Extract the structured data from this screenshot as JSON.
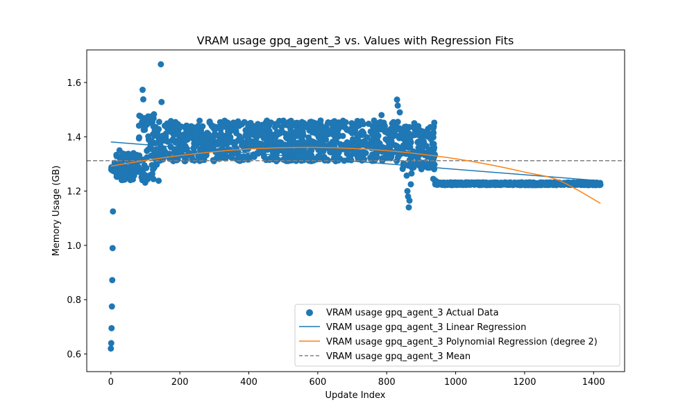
{
  "chart_data": {
    "type": "scatter",
    "title": "VRAM usage gpq_agent_3 vs. Values with Regression Fits",
    "xlabel": "Update Index",
    "ylabel": "Memory Usage (GB)",
    "xlim": [
      -70,
      1490
    ],
    "ylim": [
      0.535,
      1.72
    ],
    "xticks": [
      0,
      200,
      400,
      600,
      800,
      1000,
      1200,
      1400
    ],
    "xtick_labels": [
      "0",
      "200",
      "400",
      "600",
      "800",
      "1000",
      "1200",
      "1400"
    ],
    "yticks": [
      0.6,
      0.8,
      1.0,
      1.2,
      1.4,
      1.6
    ],
    "ytick_labels": [
      "0.6",
      "0.8",
      "1.0",
      "1.2",
      "1.4",
      "1.6"
    ],
    "grid": false,
    "legend_position": "lower-right",
    "colors": {
      "actual": "#1f77b4",
      "linear": "#1f77b4",
      "poly": "#ff7f0e",
      "mean": "#808080"
    },
    "series": [
      {
        "name": "VRAM usage gpq_agent_3 Actual Data",
        "kind": "scatter",
        "segments": [
          {
            "x_range": [
              0,
              10
            ],
            "y_range": [
              1.27,
              1.29
            ]
          },
          {
            "x_range": [
              10,
              80
            ],
            "y_range": [
              1.24,
              1.34
            ]
          },
          {
            "x_range": [
              80,
              140
            ],
            "y_range": [
              1.23,
              1.48
            ]
          },
          {
            "x_range": [
              140,
              840
            ],
            "y_range": [
              1.31,
              1.46
            ]
          },
          {
            "x_range": [
              840,
              940
            ],
            "y_range": [
              1.28,
              1.44
            ]
          },
          {
            "x_range": [
              940,
              1420
            ],
            "y_range": [
              1.222,
              1.232
            ]
          }
        ],
        "points": [
          {
            "x": 0,
            "y": 0.62
          },
          {
            "x": 1,
            "y": 0.64
          },
          {
            "x": 2,
            "y": 0.695
          },
          {
            "x": 3,
            "y": 0.775
          },
          {
            "x": 4,
            "y": 0.872
          },
          {
            "x": 5,
            "y": 0.99
          },
          {
            "x": 6,
            "y": 1.125
          },
          {
            "x": 25,
            "y": 1.35
          },
          {
            "x": 60,
            "y": 1.33
          },
          {
            "x": 92,
            "y": 1.573
          },
          {
            "x": 94,
            "y": 1.538
          },
          {
            "x": 145,
            "y": 1.667
          },
          {
            "x": 147,
            "y": 1.528
          },
          {
            "x": 125,
            "y": 1.483
          },
          {
            "x": 100,
            "y": 1.44
          },
          {
            "x": 108,
            "y": 1.475
          },
          {
            "x": 140,
            "y": 1.455
          },
          {
            "x": 785,
            "y": 1.48
          },
          {
            "x": 830,
            "y": 1.537
          },
          {
            "x": 832,
            "y": 1.515
          },
          {
            "x": 838,
            "y": 1.49
          },
          {
            "x": 858,
            "y": 1.257
          },
          {
            "x": 860,
            "y": 1.2
          },
          {
            "x": 862,
            "y": 1.18
          },
          {
            "x": 864,
            "y": 1.14
          },
          {
            "x": 866,
            "y": 1.165
          },
          {
            "x": 870,
            "y": 1.225
          },
          {
            "x": 872,
            "y": 1.265
          },
          {
            "x": 875,
            "y": 1.3
          },
          {
            "x": 880,
            "y": 1.45
          },
          {
            "x": 938,
            "y": 1.452
          },
          {
            "x": 935,
            "y": 1.245
          },
          {
            "x": 940,
            "y": 1.24
          },
          {
            "x": 945,
            "y": 1.235
          }
        ]
      },
      {
        "name": "VRAM usage gpq_agent_3 Linear Regression",
        "kind": "line",
        "x": [
          0,
          1420
        ],
        "values": [
          1.381,
          1.238
        ]
      },
      {
        "name": "VRAM usage gpq_agent_3 Polynomial Regression (degree 2)",
        "kind": "line",
        "x": [
          0,
          100,
          200,
          300,
          400,
          500,
          600,
          700,
          800,
          900,
          1000,
          1100,
          1200,
          1300,
          1420
        ],
        "values": [
          1.292,
          1.313,
          1.331,
          1.345,
          1.355,
          1.36,
          1.361,
          1.357,
          1.349,
          1.336,
          1.319,
          1.297,
          1.27,
          1.239,
          1.155
        ]
      },
      {
        "name": "VRAM usage gpq_agent_3 Mean",
        "kind": "hline",
        "values": [
          1.312
        ]
      }
    ]
  }
}
